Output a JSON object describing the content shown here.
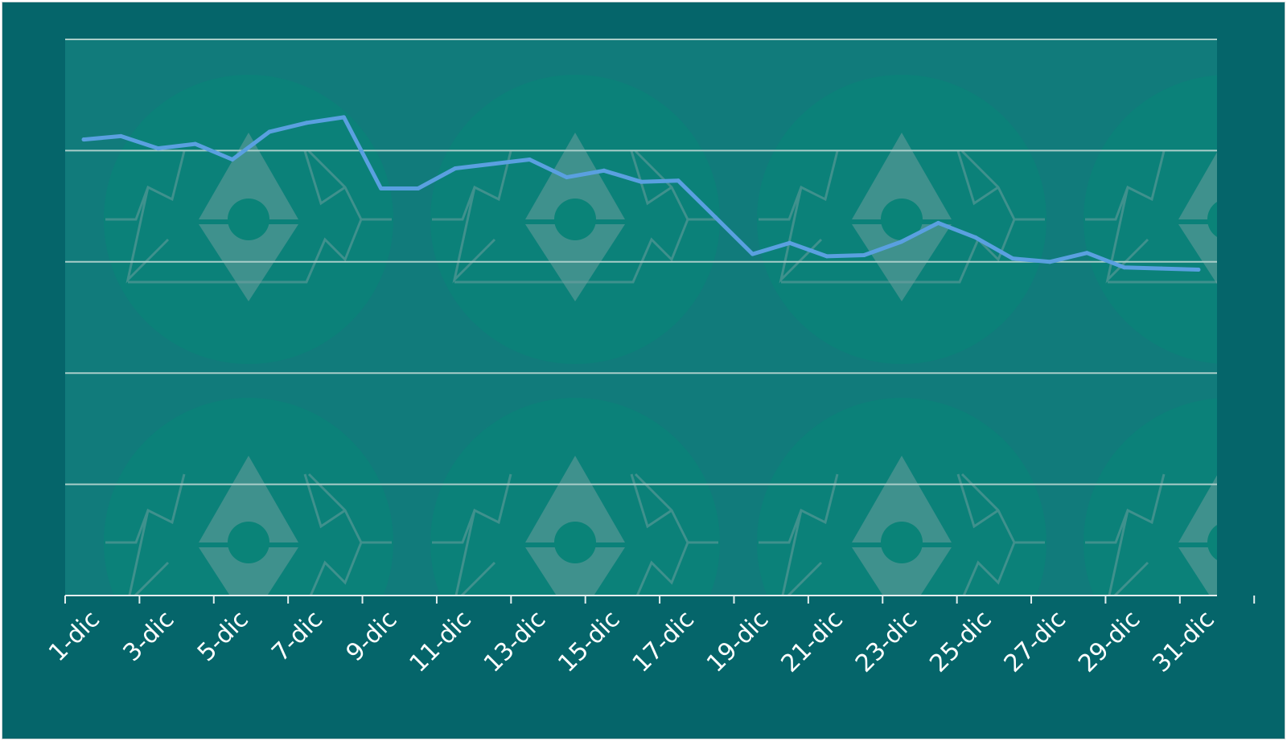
{
  "colors": {
    "background": "#05656a",
    "plot_area": "#117b7b",
    "grid": "#a9cdc9",
    "line": "#5aa0e0",
    "tick_text": "#ffffff",
    "watermark": "#0a8378"
  },
  "chart_data": {
    "type": "line",
    "title": "",
    "xlabel": "",
    "ylabel": "",
    "grid": true,
    "legend": "none",
    "ylim": [
      0,
      5
    ],
    "gridlines": [
      0,
      1,
      2,
      3,
      4,
      5
    ],
    "xtick_labels": [
      "1-dic",
      "3-dic",
      "5-dic",
      "7-dic",
      "9-dic",
      "11-dic",
      "13-dic",
      "15-dic",
      "17-dic",
      "19-dic",
      "21-dic",
      "23-dic",
      "25-dic",
      "27-dic",
      "29-dic",
      "31-dic"
    ],
    "x": [
      "1-dic",
      "2-dic",
      "3-dic",
      "4-dic",
      "5-dic",
      "6-dic",
      "7-dic",
      "8-dic",
      "9-dic",
      "10-dic",
      "11-dic",
      "12-dic",
      "13-dic",
      "14-dic",
      "15-dic",
      "16-dic",
      "17-dic",
      "18-dic",
      "19-dic",
      "20-dic",
      "21-dic",
      "22-dic",
      "23-dic",
      "24-dic",
      "25-dic",
      "26-dic",
      "27-dic",
      "28-dic",
      "29-dic",
      "30-dic",
      "31-dic"
    ],
    "series": [
      {
        "values": [
          4.1,
          4.13,
          4.02,
          4.06,
          3.92,
          4.17,
          4.25,
          4.3,
          3.66,
          3.66,
          3.84,
          3.88,
          3.92,
          3.76,
          3.82,
          3.72,
          3.73,
          3.4,
          3.07,
          3.17,
          3.05,
          3.06,
          3.18,
          3.35,
          3.22,
          3.03,
          3.0,
          3.08,
          2.95,
          2.94,
          2.93
        ]
      }
    ]
  }
}
